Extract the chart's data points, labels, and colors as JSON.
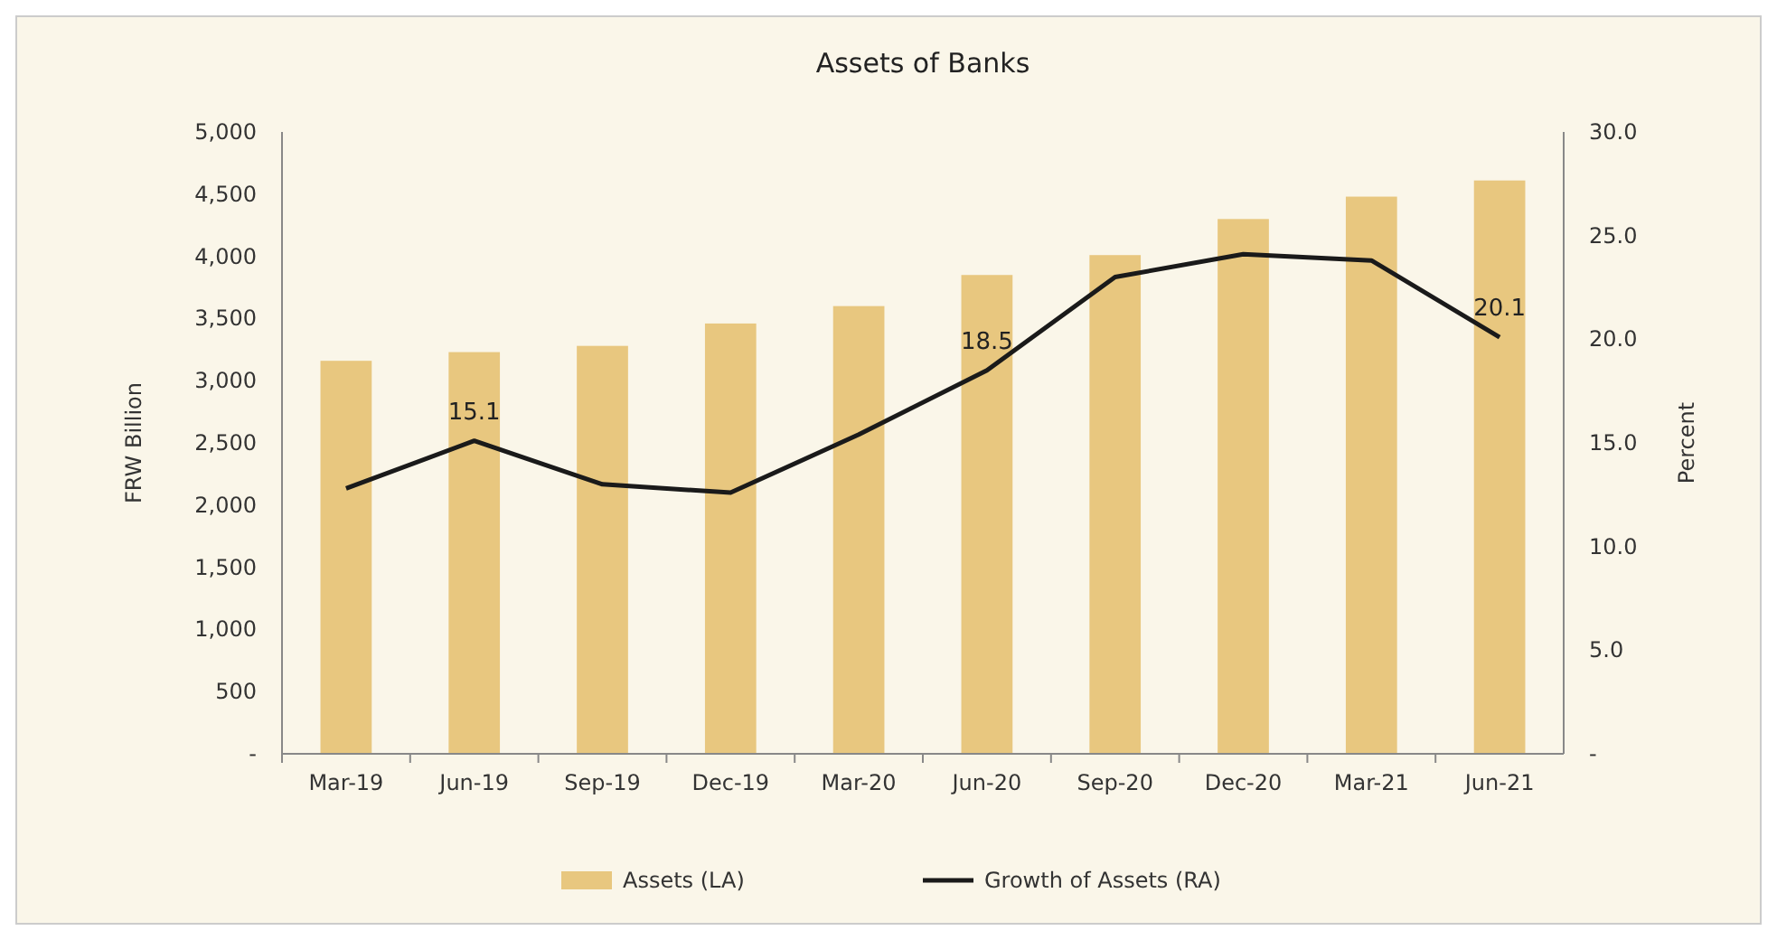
{
  "chart_data": {
    "type": "bar",
    "title": "Assets of Banks",
    "ylabel": "FRW Billion",
    "y2label": "Percent",
    "categories": [
      "Mar-19",
      "Jun-19",
      "Sep-19",
      "Dec-19",
      "Mar-20",
      "Jun-20",
      "Sep-20",
      "Dec-20",
      "Mar-21",
      "Jun-21"
    ],
    "series": [
      {
        "name": "Assets (LA)",
        "color": "#e8c77f",
        "values": [
          3160,
          3230,
          3280,
          3460,
          3600,
          3850,
          4010,
          4300,
          4480,
          4610
        ]
      },
      {
        "name": "Growth of Assets (RA)",
        "type": "line",
        "axis": "y2",
        "color": "#1a1a1a",
        "values": [
          12.8,
          15.1,
          13.0,
          12.6,
          15.4,
          18.5,
          23.0,
          24.1,
          23.8,
          20.1
        ],
        "value_labels": [
          null,
          "15.1",
          null,
          null,
          null,
          "18.5",
          null,
          null,
          null,
          "20.1"
        ]
      }
    ],
    "ylim": [
      0,
      5000
    ],
    "yticks": [
      {
        "value": 0,
        "label": "-"
      },
      500,
      {
        "value": 1000,
        "label": "1,000"
      },
      {
        "value": 1500,
        "label": "1,500"
      },
      {
        "value": 2000,
        "label": "2,000"
      },
      {
        "value": 2500,
        "label": "2,500"
      },
      {
        "value": 3000,
        "label": "3,000"
      },
      {
        "value": 3500,
        "label": "3,500"
      },
      {
        "value": 4000,
        "label": "4,000"
      },
      {
        "value": 4500,
        "label": "4,500"
      },
      {
        "value": 5000,
        "label": "5,000"
      }
    ],
    "y2lim": [
      0,
      30
    ],
    "y2ticks": [
      {
        "value": 0,
        "label": "-"
      },
      {
        "value": 5,
        "label": "5.0"
      },
      {
        "value": 10,
        "label": "10.0"
      },
      {
        "value": 15,
        "label": "15.0"
      },
      {
        "value": 20,
        "label": "20.0"
      },
      {
        "value": 25,
        "label": "25.0"
      },
      {
        "value": 30,
        "label": "30.0"
      }
    ],
    "grid": false,
    "legend": "bottom",
    "line_style": "solid",
    "marker": "none"
  }
}
